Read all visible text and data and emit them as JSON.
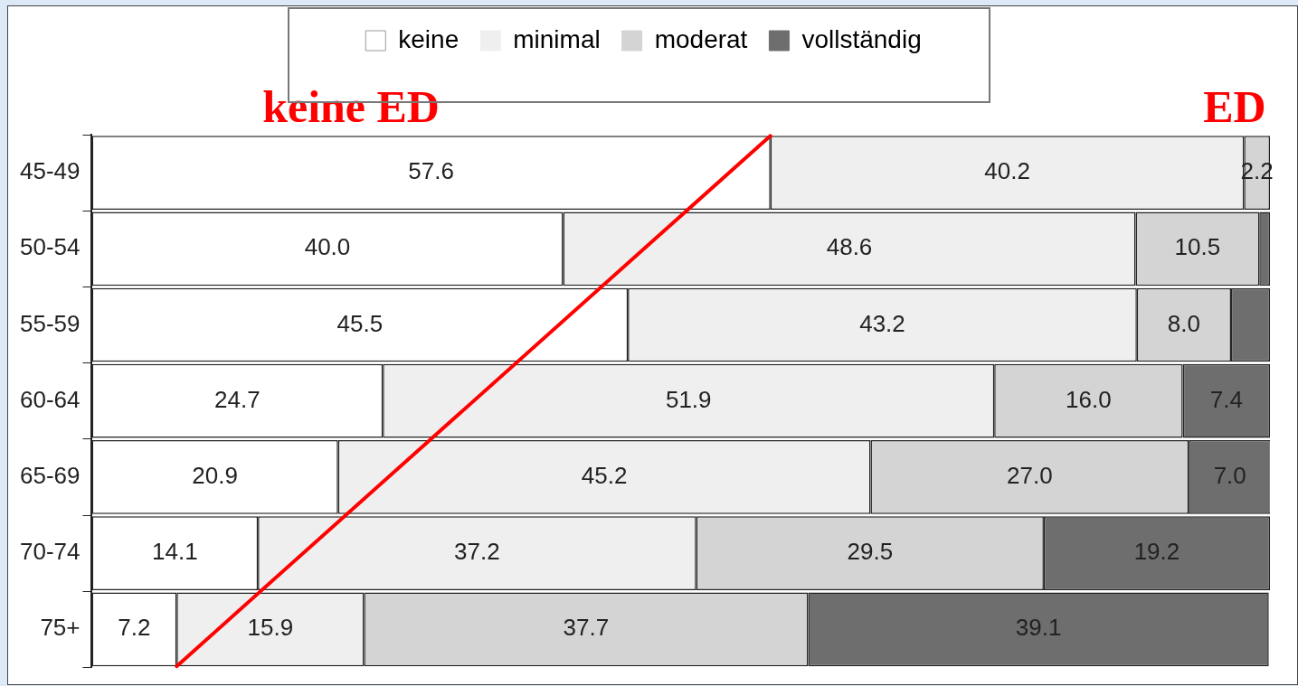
{
  "chart_data": {
    "type": "bar",
    "orientation": "horizontal",
    "stacked": true,
    "categories": [
      "45-49",
      "50-54",
      "55-59",
      "60-64",
      "65-69",
      "70-74",
      "75+"
    ],
    "xlim": [
      0,
      100
    ],
    "tick_labels": "y",
    "grid": false,
    "legend": "top",
    "annotations": [
      "keine ED",
      "ED"
    ],
    "series": [
      {
        "name": "keine",
        "color": "#ffffff",
        "values": [
          57.6,
          40.0,
          45.5,
          24.7,
          20.9,
          14.1,
          7.2
        ],
        "value_labels": [
          "57.6",
          "40.0",
          "45.5",
          "24.7",
          "20.9",
          "14.1",
          "7.2"
        ]
      },
      {
        "name": "minimal",
        "color": "#efefef",
        "values": [
          40.2,
          48.6,
          43.2,
          51.9,
          45.2,
          37.2,
          15.9
        ],
        "value_labels": [
          "40.2",
          "48.6",
          "43.2",
          "51.9",
          "45.2",
          "37.2",
          "15.9"
        ]
      },
      {
        "name": "moderat",
        "color": "#d4d4d4",
        "values": [
          2.2,
          10.5,
          8.0,
          16.0,
          27.0,
          29.5,
          37.7
        ],
        "value_labels": [
          "2.2",
          "10.5",
          "8.0",
          "16.0",
          "27.0",
          "29.5",
          "37.7"
        ]
      },
      {
        "name": "vollständig",
        "color": "#6e6e6e",
        "values": [
          0,
          0.9,
          3.3,
          7.4,
          7.0,
          19.2,
          39.1
        ],
        "value_labels": [
          null,
          null,
          null,
          "7.4",
          "7.0",
          "19.2",
          "39.1"
        ]
      }
    ]
  }
}
